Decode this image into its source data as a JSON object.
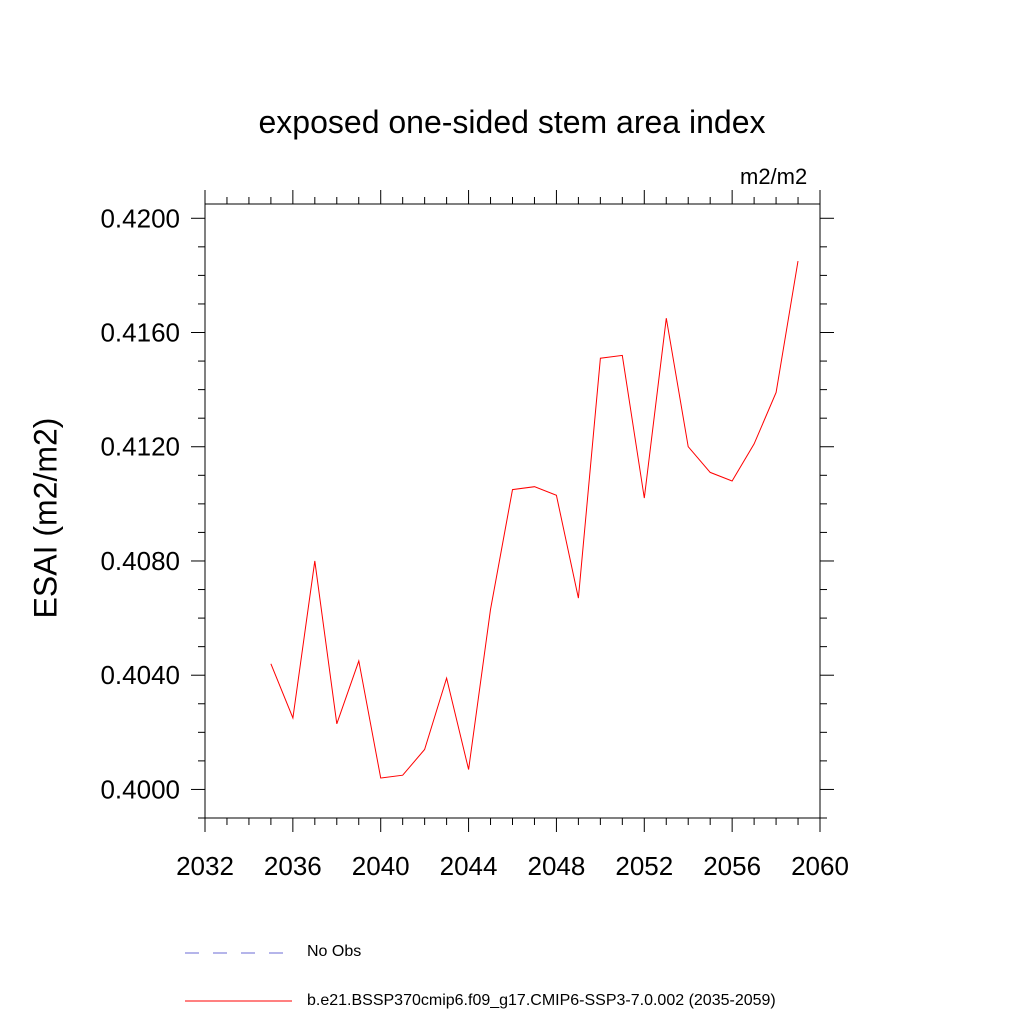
{
  "chart_data": {
    "type": "line",
    "title": "exposed one-sided stem area index",
    "units_label": "m2/m2",
    "ylabel": "ESAI  (m2/m2)",
    "xlabel": "",
    "xlim": [
      2032,
      2060
    ],
    "ylim": [
      0.399,
      0.4205
    ],
    "x_ticks": [
      2032,
      2036,
      2040,
      2044,
      2048,
      2052,
      2056,
      2060
    ],
    "x_tick_labels": [
      "2032",
      "2036",
      "2040",
      "2044",
      "2048",
      "2052",
      "2056",
      "2060"
    ],
    "y_ticks": [
      0.4,
      0.404,
      0.408,
      0.412,
      0.416,
      0.42
    ],
    "y_tick_labels": [
      "0.4000",
      "0.4040",
      "0.4080",
      "0.4120",
      "0.4160",
      "0.4200"
    ],
    "grid": false,
    "legend_position": "bottom",
    "series": [
      {
        "name": "b.e21.BSSP370cmip6.f09_g17.CMIP6-SSP3-7.0.002 (2035-2059)",
        "color": "#ff0000",
        "style": "solid",
        "x": [
          2035,
          2036,
          2037,
          2038,
          2039,
          2040,
          2041,
          2042,
          2043,
          2044,
          2045,
          2046,
          2047,
          2048,
          2049,
          2050,
          2051,
          2052,
          2053,
          2054,
          2055,
          2056,
          2057,
          2058,
          2059
        ],
        "y": [
          0.4044,
          0.4025,
          0.408,
          0.4023,
          0.4045,
          0.4004,
          0.4005,
          0.4014,
          0.4039,
          0.4007,
          0.4063,
          0.4105,
          0.4106,
          0.4103,
          0.4067,
          0.4151,
          0.4152,
          0.4102,
          0.4165,
          0.412,
          0.4111,
          0.4108,
          0.4121,
          0.4139,
          0.4185
        ]
      }
    ],
    "legend": [
      {
        "label": "No Obs",
        "color": "#6b6bd6",
        "style": "dashed"
      },
      {
        "label": "b.e21.BSSP370cmip6.f09_g17.CMIP6-SSP3-7.0.002 (2035-2059)",
        "color": "#ff0000",
        "style": "solid"
      }
    ]
  }
}
